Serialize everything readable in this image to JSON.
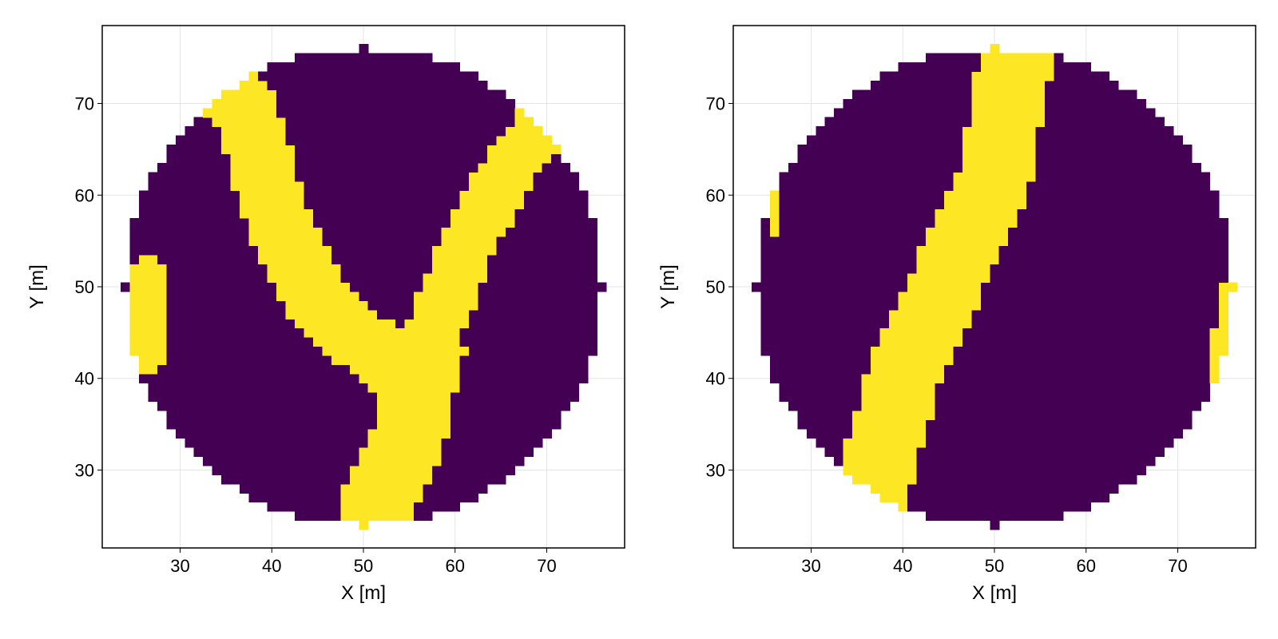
{
  "figure": {
    "background": "#ffffff",
    "colors": {
      "zero": "#440154",
      "one": "#fde725",
      "grid": "#e5e5e5",
      "frame": "#000000"
    }
  },
  "chart_data": [
    {
      "type": "heatmap",
      "xlabel": "X [m]",
      "ylabel": "Y [m]",
      "xlim": [
        21.5,
        78.5
      ],
      "ylim": [
        21.5,
        78.5
      ],
      "xticks": [
        30,
        40,
        50,
        60,
        70
      ],
      "yticks": [
        30,
        40,
        50,
        60,
        70
      ],
      "grid": true,
      "cell_size": 1,
      "domain": {
        "shape": "disk",
        "center": [
          50,
          50
        ],
        "radius": 26
      },
      "values": [
        0,
        1
      ],
      "background_value": 0,
      "filled_value": 1,
      "filled_regions": [
        {
          "name": "",
          "path": [
            [
              51,
              25.5
            ],
            [
              55,
              34
            ],
            [
              57,
              43
            ]
          ],
          "width": 8
        },
        {
          "name": "",
          "path": [
            [
              57,
              43
            ],
            [
              61,
              54
            ],
            [
              66.5,
              64
            ],
            [
              71.5,
              69.5
            ]
          ],
          "width": 6
        },
        {
          "name": "",
          "path": [
            [
              54,
              41
            ],
            [
              46,
              47
            ],
            [
              41,
              56
            ],
            [
              37,
              70
            ],
            [
              33,
              72
            ]
          ],
          "width": 7
        },
        {
          "name": "",
          "path": [
            [
              26.5,
              42
            ],
            [
              26.5,
              52
            ]
          ],
          "width": 3
        }
      ]
    },
    {
      "type": "heatmap",
      "xlabel": "X [m]",
      "ylabel": "Y [m]",
      "xlim": [
        21.5,
        78.5
      ],
      "ylim": [
        21.5,
        78.5
      ],
      "xticks": [
        30,
        40,
        50,
        60,
        70
      ],
      "yticks": [
        30,
        40,
        50,
        60,
        70
      ],
      "grid": true,
      "cell_size": 1,
      "domain": {
        "shape": "disk",
        "center": [
          50,
          50
        ],
        "radius": 26
      },
      "values": [
        0,
        1
      ],
      "background_value": 0,
      "filled_value": 1,
      "filled_regions": [
        {
          "name": "",
          "path": [
            [
              36.5,
              27.5
            ],
            [
              40,
              40
            ],
            [
              45,
              51
            ],
            [
              50,
              62
            ],
            [
              52.5,
              75.5
            ]
          ],
          "width": 8
        },
        {
          "name": "",
          "path": [
            [
              26,
              56
            ],
            [
              26,
              60
            ]
          ],
          "width": 1.5
        },
        {
          "name": "",
          "path": [
            [
              75.5,
              50
            ],
            [
              74,
              40
            ]
          ],
          "width": 1.5
        }
      ]
    }
  ]
}
